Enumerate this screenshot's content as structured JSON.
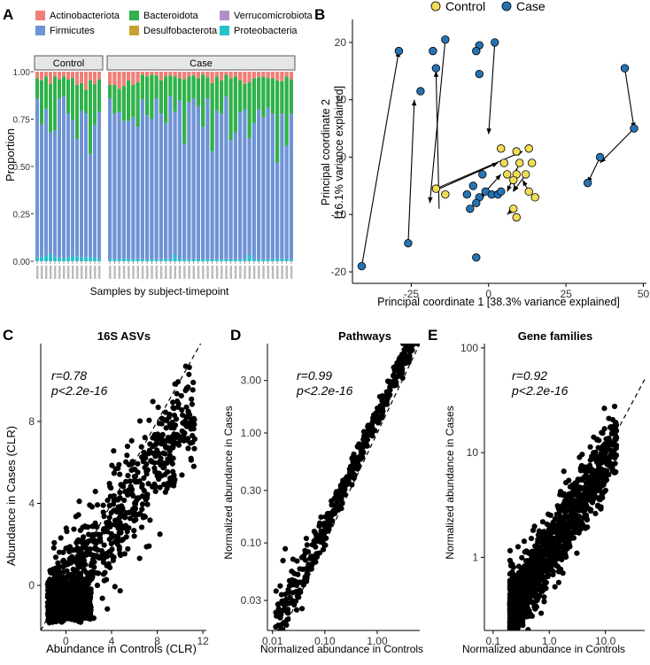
{
  "colors": {
    "Actinobacteriota": "#f07f78",
    "Firmicutes": "#6f93d6",
    "Bacteroidota": "#2fb24a",
    "Desulfobacterota": "#c9a131",
    "Verrucomicrobiota": "#b08ec9",
    "Proteobacteria": "#28c2c9",
    "control_point": "#f1dd55",
    "case_point": "#2673b3",
    "strip_bg": "#e6e6e6"
  },
  "panel_labels": {
    "a": "A",
    "b": "B",
    "c": "C",
    "d": "D",
    "e": "E"
  },
  "chart_data": [
    {
      "id": "A",
      "type": "bar",
      "stacked": true,
      "ylabel": "Proportion",
      "xlabel": "Samples by subject-timepoint",
      "ylim": [
        0,
        1
      ],
      "yticks": [
        "0.00",
        "0.25",
        "0.50",
        "0.75",
        "1.00"
      ],
      "ytick_values": [
        0,
        0.25,
        0.5,
        0.75,
        1.0
      ],
      "legend": [
        "Actinobacteriota",
        "Bacteroidota",
        "Verrucomicrobiota",
        "Firmicutes",
        "Desulfobacterota",
        "Proteobacteria"
      ],
      "facets": [
        {
          "label": "Control",
          "bacteroidota_top": [
            0.965,
            0.955,
            0.975,
            0.935,
            0.975,
            0.96,
            0.975,
            0.96,
            0.965,
            0.93,
            0.94,
            0.905,
            0.955,
            0.935,
            0.96
          ],
          "firmicutes_top": [
            0.86,
            0.72,
            0.805,
            0.68,
            0.69,
            0.86,
            0.87,
            0.78,
            0.745,
            0.645,
            0.795,
            0.78,
            0.565,
            0.72,
            0.79
          ],
          "proteobacteria_top": [
            0.02,
            0.02,
            0.03,
            0.04,
            0.02,
            0.02,
            0.015,
            0.02,
            0.03,
            0.025,
            0.02,
            0.02,
            0.02,
            0.02,
            0.015
          ]
        },
        {
          "label": "Case",
          "bacteroidota_top": [
            0.93,
            0.93,
            0.91,
            0.925,
            0.955,
            0.93,
            0.945,
            0.985,
            0.975,
            0.985,
            0.98,
            0.955,
            0.975,
            0.98,
            0.975,
            0.965,
            0.96,
            0.975,
            0.98,
            0.965,
            0.985,
            0.97,
            0.94,
            0.975,
            0.955,
            0.985,
            0.965,
            0.975,
            0.955,
            0.935,
            0.945,
            0.965,
            0.97,
            0.975,
            0.965,
            0.965,
            0.955,
            0.95,
            0.975,
            0.96
          ],
          "firmicutes_top": [
            0.86,
            0.78,
            0.79,
            0.74,
            0.74,
            0.76,
            0.71,
            0.855,
            0.77,
            0.75,
            0.86,
            0.78,
            0.73,
            0.87,
            0.79,
            0.85,
            0.62,
            0.84,
            0.86,
            0.82,
            0.71,
            0.86,
            0.58,
            0.795,
            0.78,
            0.87,
            0.64,
            0.68,
            0.785,
            0.8,
            0.65,
            0.73,
            0.8,
            0.76,
            0.81,
            0.78,
            0.52,
            0.78,
            0.61,
            0.78
          ],
          "proteobacteria_top": [
            0.01,
            0.01,
            0.01,
            0.015,
            0.01,
            0.01,
            0.01,
            0.01,
            0.01,
            0.01,
            0.01,
            0.01,
            0.01,
            0.01,
            0.035,
            0.01,
            0.01,
            0.01,
            0.01,
            0.01,
            0.01,
            0.01,
            0.01,
            0.01,
            0.01,
            0.01,
            0.01,
            0.01,
            0.01,
            0.01,
            0.035,
            0.01,
            0.01,
            0.01,
            0.01,
            0.01,
            0.015,
            0.01,
            0.01,
            0.01
          ]
        }
      ]
    },
    {
      "id": "B",
      "type": "scatter",
      "xlabel": "Principal coordinate 1 [38.3% variance explained]",
      "ylabel": "Principal coordinate 2",
      "ylabel2": "[16.1% variance explained]",
      "xlim": [
        -44,
        51
      ],
      "ylim": [
        -22,
        24
      ],
      "xticks": [
        -25,
        0,
        25,
        50
      ],
      "xtick_labels": [
        "-25",
        "0",
        "25",
        "50"
      ],
      "yticks": [
        -20,
        -10,
        0,
        10,
        20
      ],
      "ytick_labels": [
        "-20",
        "-10",
        "0",
        "10",
        "20"
      ],
      "legend": [
        "Control",
        "Case"
      ],
      "control_points": [
        [
          4,
          1.5
        ],
        [
          9,
          1
        ],
        [
          13,
          1.5
        ],
        [
          5,
          -1
        ],
        [
          10,
          -1
        ],
        [
          14,
          -1
        ],
        [
          6,
          -3
        ],
        [
          9,
          -3
        ],
        [
          12,
          -3
        ],
        [
          8,
          -4
        ],
        [
          -17,
          -5.5
        ],
        [
          -14,
          -6.5
        ],
        [
          13,
          -6
        ],
        [
          15,
          -7
        ],
        [
          8,
          -9
        ],
        [
          9,
          -10.5
        ]
      ],
      "case_points": [
        [
          -29,
          18.5
        ],
        [
          -14,
          20.5
        ],
        [
          -18,
          18.5
        ],
        [
          -3,
          19.5
        ],
        [
          -4,
          18.5
        ],
        [
          -3,
          14.5
        ],
        [
          2,
          20
        ],
        [
          -17,
          15.5
        ],
        [
          -22,
          11.5
        ],
        [
          -2,
          -3
        ],
        [
          -5,
          -5
        ],
        [
          -3,
          -7
        ],
        [
          -1,
          -6
        ],
        [
          1,
          -6.5
        ],
        [
          3,
          -6.5
        ],
        [
          4,
          -6
        ],
        [
          -7,
          -6.5
        ],
        [
          -4,
          -8
        ],
        [
          -6,
          -9
        ],
        [
          -4,
          -17.5
        ],
        [
          -26,
          -15
        ],
        [
          -41,
          -19
        ],
        [
          32,
          -4.5
        ],
        [
          36,
          0
        ],
        [
          44,
          15.5
        ],
        [
          47,
          5
        ]
      ],
      "arrows": [
        [
          -41,
          -19,
          -29,
          18.5
        ],
        [
          -26,
          -15,
          -24,
          10
        ],
        [
          -16,
          -9,
          -17,
          15
        ],
        [
          -14,
          20.5,
          -19,
          -8
        ],
        [
          -2,
          20,
          -4,
          19
        ],
        [
          2,
          20,
          0,
          4
        ],
        [
          -17,
          -5.5,
          11,
          1
        ],
        [
          -18,
          -6,
          3,
          -1
        ],
        [
          10,
          -1,
          6,
          -6
        ],
        [
          -6,
          -9,
          4,
          -3
        ],
        [
          12,
          -3,
          8,
          -6
        ],
        [
          8,
          -6,
          9,
          -2
        ],
        [
          44,
          15.5,
          47,
          5
        ],
        [
          47,
          5,
          36,
          -1
        ],
        [
          36,
          0,
          32,
          -4.5
        ],
        [
          8,
          -9,
          6,
          -10
        ],
        [
          13,
          -6,
          11,
          -4
        ],
        [
          -4,
          -8,
          -1,
          -6
        ]
      ]
    },
    {
      "id": "C",
      "type": "scatter",
      "title": "16S ASVs",
      "xlabel": "Abundance in Controls (CLR)",
      "ylabel": "Abundance in Cases (CLR)",
      "xlim": [
        -2.2,
        12.3
      ],
      "ylim": [
        -2.2,
        11.8
      ],
      "xticks": [
        0,
        4,
        8,
        12
      ],
      "yticks": [
        0,
        4,
        8
      ],
      "r_label": "r=0.78",
      "p_label": "p<2.2e-16"
    },
    {
      "id": "D",
      "type": "scatter",
      "title": "Pathways",
      "xlabel": "Normalized abundance in Controls",
      "ylabel": "Normalized abundance in Cases",
      "log": true,
      "xlim": [
        0.008,
        6.5
      ],
      "ylim": [
        0.016,
        6.5
      ],
      "xticks": [
        0.01,
        0.1,
        1
      ],
      "xtick_labels": [
        "0.01",
        "0.10",
        "1.00"
      ],
      "yticks": [
        0.03,
        0.1,
        0.3,
        1,
        3
      ],
      "ytick_labels": [
        "0.03",
        "0.10",
        "0.30",
        "1.00",
        "3.00"
      ],
      "r_label": "r=0.99",
      "p_label": "p<2.2e-16"
    },
    {
      "id": "E",
      "type": "scatter",
      "title": "Gene families",
      "xlabel": "Normalized abundance in Controls",
      "ylabel": "Normalized abundance in Cases",
      "log": true,
      "xlim": [
        0.07,
        50
      ],
      "ylim": [
        0.2,
        110
      ],
      "xticks": [
        0.1,
        1,
        10
      ],
      "xtick_labels": [
        "0.1",
        "1.0",
        "10.0"
      ],
      "yticks": [
        1,
        10,
        100
      ],
      "ytick_labels": [
        "1",
        "10",
        "100"
      ],
      "r_label": "r=0.92",
      "p_label": "p<2.2e-16"
    }
  ]
}
